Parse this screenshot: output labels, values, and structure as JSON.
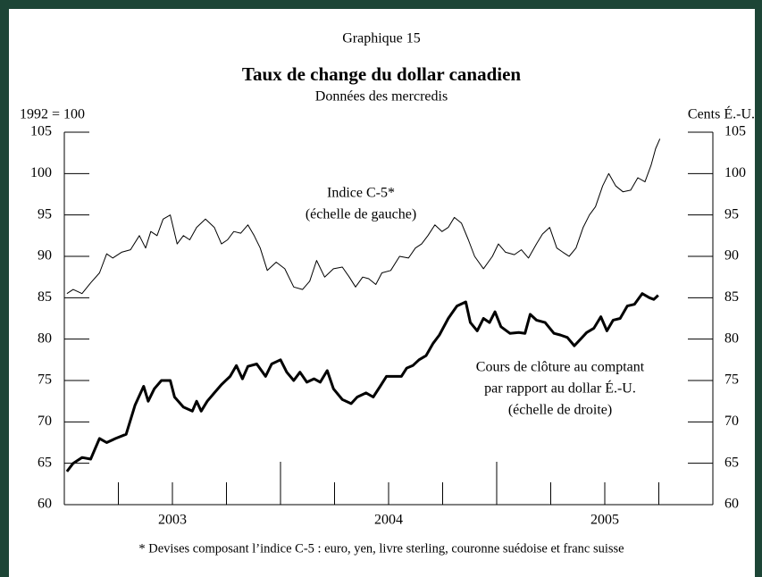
{
  "chart_data": {
    "type": "line",
    "label": "Graphique 15",
    "title": "Taux de change du dollar canadien",
    "subtitle": "Données des mercredis",
    "ylabel": "1992 = 100",
    "y2label": "Cents É.-U.",
    "footnote": "*   Devises composant l’indice C-5 : euro, yen, livre sterling, couronne suédoise et franc suisse",
    "annotations": [
      {
        "series": 1,
        "lines": [
          "Indice C-5*",
          "(échelle de gauche)"
        ]
      },
      {
        "series": 0,
        "lines": [
          "Cours de clôture au comptant",
          "par rapport au dollar É.-U.",
          "(échelle de droite)"
        ]
      }
    ],
    "xlim": [
      2003,
      2006
    ],
    "xticks": [
      2004,
      2005
    ],
    "xminorticks": [
      2003.25,
      2003.5,
      2003.75,
      2004.25,
      2004.5,
      2004.75,
      2005.25,
      2005.5,
      2005.75
    ],
    "xlabels": [
      {
        "value": 2003.5,
        "label": "2003"
      },
      {
        "value": 2004.5,
        "label": "2004"
      },
      {
        "value": 2005.5,
        "label": "2005"
      }
    ],
    "ylim": [
      60,
      105
    ],
    "yticks": [
      60,
      65,
      70,
      75,
      80,
      85,
      90,
      95,
      100,
      105
    ],
    "y2lim": [
      60,
      105
    ],
    "y2ticks": [
      60,
      65,
      70,
      75,
      80,
      85,
      90,
      95,
      100,
      105
    ],
    "series": [
      {
        "color": "#000000",
        "axis": "y2",
        "width": 3,
        "x": [
          2003.012,
          2003.041,
          2003.082,
          2003.122,
          2003.163,
          2003.196,
          2003.237,
          2003.286,
          2003.327,
          2003.367,
          2003.388,
          2003.416,
          2003.449,
          2003.49,
          2003.51,
          2003.551,
          2003.592,
          2003.612,
          2003.633,
          2003.661,
          2003.694,
          2003.727,
          2003.767,
          2003.796,
          2003.824,
          2003.849,
          2003.89,
          2003.931,
          2003.959,
          2004.0,
          2004.029,
          2004.061,
          2004.09,
          2004.122,
          2004.155,
          2004.184,
          2004.216,
          2004.245,
          2004.286,
          2004.327,
          2004.355,
          2004.396,
          2004.429,
          2004.461,
          2004.49,
          2004.531,
          2004.559,
          2004.584,
          2004.612,
          2004.641,
          2004.673,
          2004.706,
          2004.735,
          2004.776,
          2004.816,
          2004.857,
          2004.878,
          2004.91,
          2004.939,
          2004.967,
          2004.992,
          2005.02,
          2005.061,
          2005.102,
          2005.131,
          2005.155,
          2005.184,
          2005.224,
          2005.265,
          2005.294,
          2005.327,
          2005.359,
          2005.388,
          2005.416,
          2005.449,
          2005.482,
          2005.51,
          2005.539,
          2005.571,
          2005.604,
          2005.637,
          2005.673,
          2005.706,
          2005.727,
          2005.747
        ],
        "values": [
          64,
          65,
          65.7,
          65.5,
          68,
          67.5,
          68,
          68.5,
          72,
          74.3,
          72.5,
          74,
          75,
          75,
          73,
          71.8,
          71.3,
          72.5,
          71.3,
          72.5,
          73.5,
          74.5,
          75.5,
          76.8,
          75.2,
          76.7,
          77,
          75.5,
          77,
          77.5,
          76,
          75,
          76,
          74.8,
          75.2,
          74.8,
          76.2,
          74,
          72.7,
          72.2,
          73,
          73.5,
          73,
          74.3,
          75.5,
          75.5,
          75.5,
          76.5,
          76.8,
          77.5,
          78,
          79.5,
          80.5,
          82.5,
          84,
          84.5,
          82,
          81,
          82.5,
          82,
          83.3,
          81.5,
          80.7,
          80.8,
          80.7,
          83,
          82.3,
          82,
          80.7,
          80.5,
          80.2,
          79.2,
          80,
          80.8,
          81.3,
          82.7,
          81,
          82.3,
          82.5,
          84,
          84.2,
          85.5,
          85,
          84.8,
          85.3
        ]
      },
      {
        "color": "#000000",
        "axis": "y",
        "width": 1,
        "x": [
          2003.012,
          2003.041,
          2003.082,
          2003.122,
          2003.163,
          2003.196,
          2003.224,
          2003.265,
          2003.306,
          2003.347,
          2003.376,
          2003.4,
          2003.429,
          2003.457,
          2003.49,
          2003.522,
          2003.551,
          2003.58,
          2003.612,
          2003.653,
          2003.694,
          2003.727,
          2003.755,
          2003.784,
          2003.816,
          2003.849,
          2003.878,
          2003.906,
          2003.939,
          2003.98,
          2004.02,
          2004.061,
          2004.102,
          2004.135,
          2004.167,
          2004.204,
          2004.245,
          2004.286,
          2004.318,
          2004.347,
          2004.38,
          2004.408,
          2004.441,
          2004.469,
          2004.51,
          2004.551,
          2004.592,
          2004.624,
          2004.653,
          2004.682,
          2004.714,
          2004.747,
          2004.776,
          2004.804,
          2004.837,
          2004.869,
          2004.898,
          2004.939,
          2004.98,
          2005.008,
          2005.041,
          2005.082,
          2005.114,
          2005.147,
          2005.184,
          2005.212,
          2005.245,
          2005.278,
          2005.306,
          2005.335,
          2005.367,
          2005.4,
          2005.429,
          2005.457,
          2005.49,
          2005.518,
          2005.551,
          2005.584,
          2005.62,
          2005.653,
          2005.686,
          2005.714,
          2005.735,
          2005.755
        ],
        "values": [
          85.5,
          86,
          85.5,
          86.8,
          88,
          90.3,
          89.8,
          90.5,
          90.8,
          92.5,
          91,
          93,
          92.5,
          94.5,
          95,
          91.5,
          92.5,
          92,
          93.5,
          94.5,
          93.5,
          91.5,
          92,
          93,
          92.8,
          93.8,
          92.5,
          91,
          88.3,
          89.3,
          88.5,
          86.3,
          86,
          87,
          89.5,
          87.5,
          88.5,
          88.7,
          87.5,
          86.3,
          87.5,
          87.3,
          86.6,
          88,
          88.3,
          90,
          89.8,
          91,
          91.5,
          92.5,
          93.8,
          93,
          93.5,
          94.7,
          94,
          92,
          90,
          88.5,
          90,
          91.5,
          90.5,
          90.2,
          90.8,
          89.8,
          91.5,
          92.7,
          93.5,
          91,
          90.5,
          90,
          91,
          93.5,
          95,
          96,
          98.5,
          100,
          98.5,
          97.8,
          98,
          99.5,
          99,
          101,
          103,
          104.2
        ]
      }
    ]
  }
}
